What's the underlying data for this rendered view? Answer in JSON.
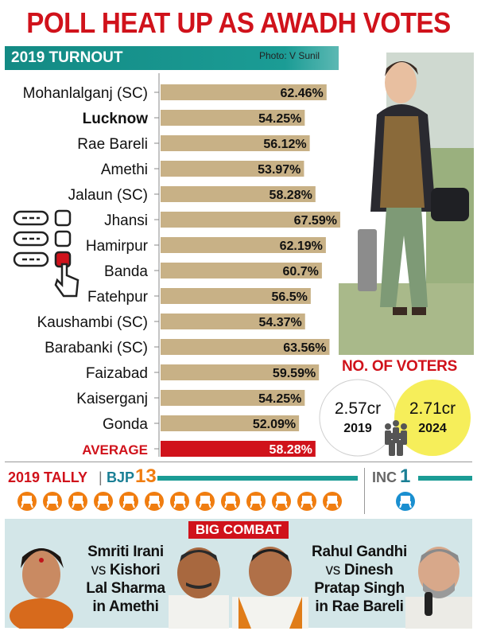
{
  "headline": "POLL HEAT UP AS AWADH VOTES",
  "turnout": {
    "title": "2019 TURNOUT",
    "photo_credit": "Photo: V Sunil"
  },
  "chart_data": {
    "type": "bar",
    "orientation": "horizontal",
    "title": "2019 TURNOUT",
    "categories": [
      "Mohanlalganj (SC)",
      "Lucknow",
      "Rae Bareli",
      "Amethi",
      "Jalaun (SC)",
      "Jhansi",
      "Hamirpur",
      "Banda",
      "Fatehpur",
      "Kaushambi (SC)",
      "Barabanki (SC)",
      "Faizabad",
      "Kaiserganj",
      "Gonda",
      "AVERAGE"
    ],
    "values": [
      62.46,
      54.25,
      56.12,
      53.97,
      58.28,
      67.59,
      62.19,
      60.7,
      56.5,
      54.37,
      63.56,
      59.59,
      54.25,
      52.09,
      58.28
    ],
    "value_labels": [
      "62.46%",
      "54.25%",
      "56.12%",
      "53.97%",
      "58.28%",
      "67.59%",
      "62.19%",
      "60.7%",
      "56.5%",
      "54.37%",
      "63.56%",
      "59.59%",
      "54.25%",
      "52.09%",
      "58.28%"
    ],
    "bold_categories": [
      "Lucknow",
      "AVERAGE"
    ],
    "highlight_category": "AVERAGE",
    "xlim": [
      0,
      70
    ],
    "grid": false,
    "bar_color": "#c8b186",
    "highlight_color": "#d0121b"
  },
  "voters": {
    "title": "NO. OF VOTERS",
    "items": [
      {
        "value": "2.57cr",
        "year": "2019",
        "circle_color": "#ffffff"
      },
      {
        "value": "2.71cr",
        "year": "2024",
        "circle_color": "#f6ee5a"
      }
    ],
    "icon": "crowd-icon"
  },
  "tally": {
    "title": "2019 TALLY",
    "separator": "|",
    "bjp_label": "BJP",
    "bjp_count": 13,
    "inc_label": "INC",
    "inc_count": 1,
    "bjp_color": "#f07d10",
    "inc_color": "#1a8fd0",
    "seat_icon": "chair-icon"
  },
  "combat": {
    "title": "BIG COMBAT",
    "left": {
      "line1": "Smriti Irani",
      "line2_vs": "vs",
      "line2_name": "Kishori",
      "line3": "Lal Sharma",
      "line4": "in Amethi"
    },
    "right": {
      "line1": "Rahul Gandhi",
      "line2_vs": "vs",
      "line2_name": "Dinesh",
      "line3": "Pratap Singh",
      "line4": "in Rae Bareli"
    }
  },
  "colors": {
    "headline": "#d0121b",
    "teal": "#1b9c95",
    "panel": "#d3e6e8"
  }
}
